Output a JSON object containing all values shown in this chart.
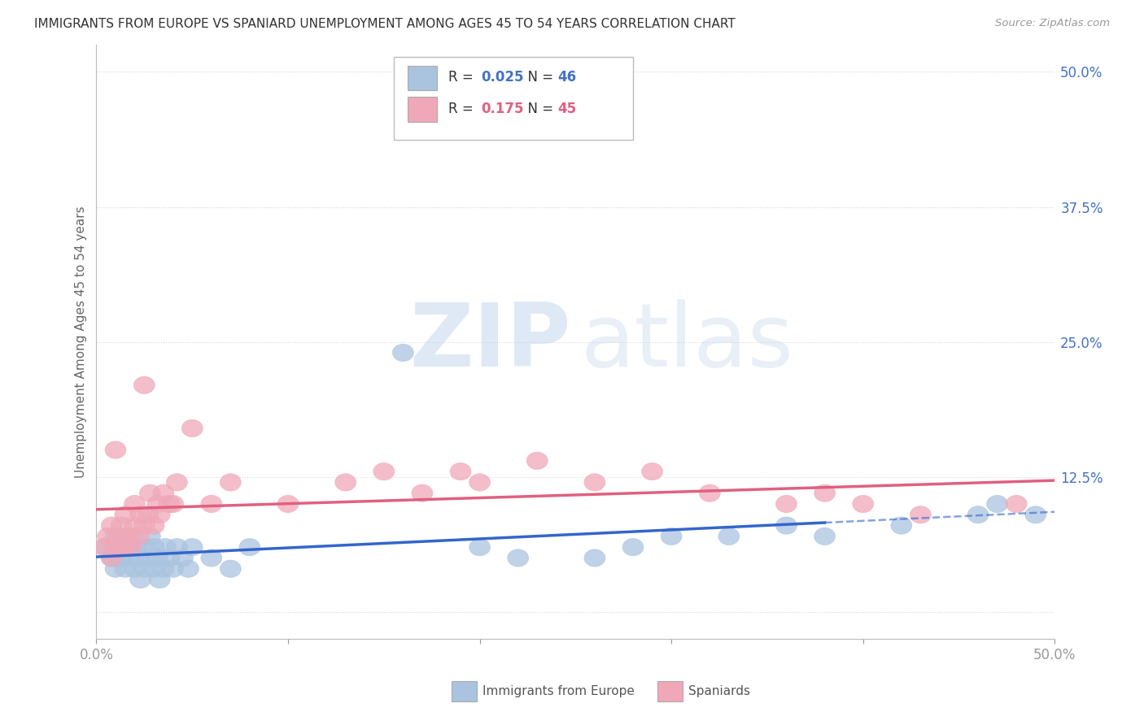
{
  "title": "IMMIGRANTS FROM EUROPE VS SPANIARD UNEMPLOYMENT AMONG AGES 45 TO 54 YEARS CORRELATION CHART",
  "source": "Source: ZipAtlas.com",
  "ylabel": "Unemployment Among Ages 45 to 54 years",
  "xlim": [
    0.0,
    0.5
  ],
  "ylim": [
    -0.025,
    0.525
  ],
  "ytick_positions": [
    0.0,
    0.125,
    0.25,
    0.375,
    0.5
  ],
  "ytick_labels": [
    "",
    "12.5%",
    "25.0%",
    "37.5%",
    "50.0%"
  ],
  "R_blue": 0.025,
  "N_blue": 46,
  "R_pink": 0.175,
  "N_pink": 45,
  "blue_color": "#aac4e0",
  "pink_color": "#f0a8b8",
  "trendline_blue": "#3366cc",
  "trendline_pink": "#e06080",
  "legend_label_blue": "Immigrants from Europe",
  "legend_label_pink": "Spaniards",
  "blue_scatter_x": [
    0.005,
    0.008,
    0.01,
    0.01,
    0.012,
    0.013,
    0.015,
    0.015,
    0.017,
    0.018,
    0.02,
    0.02,
    0.022,
    0.023,
    0.025,
    0.025,
    0.027,
    0.028,
    0.03,
    0.03,
    0.032,
    0.033,
    0.035,
    0.036,
    0.038,
    0.04,
    0.042,
    0.045,
    0.048,
    0.05,
    0.06,
    0.07,
    0.08,
    0.16,
    0.2,
    0.22,
    0.26,
    0.28,
    0.3,
    0.33,
    0.36,
    0.38,
    0.42,
    0.46,
    0.47,
    0.49
  ],
  "blue_scatter_y": [
    0.06,
    0.05,
    0.04,
    0.07,
    0.06,
    0.05,
    0.04,
    0.06,
    0.05,
    0.07,
    0.04,
    0.06,
    0.05,
    0.03,
    0.04,
    0.06,
    0.05,
    0.07,
    0.04,
    0.06,
    0.05,
    0.03,
    0.04,
    0.06,
    0.05,
    0.04,
    0.06,
    0.05,
    0.04,
    0.06,
    0.05,
    0.04,
    0.06,
    0.24,
    0.06,
    0.05,
    0.05,
    0.06,
    0.07,
    0.07,
    0.08,
    0.07,
    0.08,
    0.09,
    0.1,
    0.09
  ],
  "pink_scatter_x": [
    0.004,
    0.006,
    0.008,
    0.008,
    0.01,
    0.01,
    0.012,
    0.013,
    0.015,
    0.015,
    0.017,
    0.018,
    0.02,
    0.02,
    0.022,
    0.023,
    0.025,
    0.025,
    0.027,
    0.028,
    0.03,
    0.032,
    0.033,
    0.035,
    0.038,
    0.04,
    0.042,
    0.05,
    0.06,
    0.07,
    0.1,
    0.13,
    0.15,
    0.17,
    0.19,
    0.2,
    0.23,
    0.26,
    0.29,
    0.32,
    0.36,
    0.38,
    0.4,
    0.43,
    0.48
  ],
  "pink_scatter_y": [
    0.06,
    0.07,
    0.05,
    0.08,
    0.06,
    0.15,
    0.07,
    0.08,
    0.06,
    0.09,
    0.07,
    0.06,
    0.08,
    0.1,
    0.07,
    0.09,
    0.08,
    0.21,
    0.09,
    0.11,
    0.08,
    0.1,
    0.09,
    0.11,
    0.1,
    0.1,
    0.12,
    0.17,
    0.1,
    0.12,
    0.1,
    0.12,
    0.13,
    0.11,
    0.13,
    0.12,
    0.14,
    0.12,
    0.13,
    0.11,
    0.1,
    0.11,
    0.1,
    0.09,
    0.1
  ],
  "watermark_zip": "ZIP",
  "watermark_atlas": "atlas",
  "background_color": "#ffffff",
  "grid_color": "#cccccc",
  "blue_trendline_solid_end": 0.38,
  "blue_trendline_start": 0.0,
  "pink_trendline_start": 0.0,
  "pink_trendline_end": 0.5
}
